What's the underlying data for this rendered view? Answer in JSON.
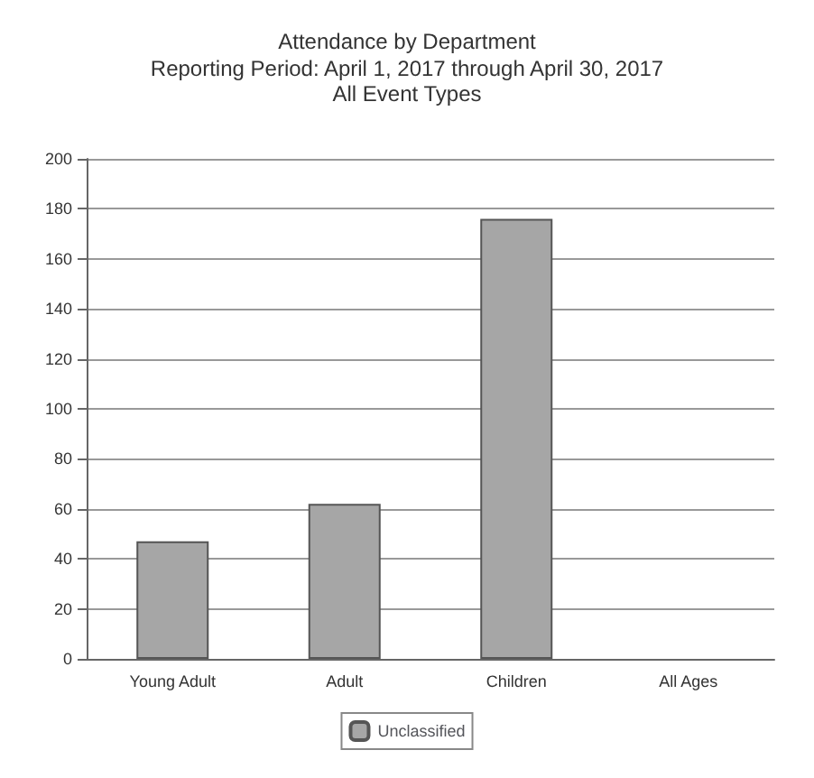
{
  "chart_data": {
    "type": "bar",
    "title": "Attendance by Department",
    "subtitle": "Reporting Period: April 1, 2017 through April 30, 2017\nAll Event Types",
    "categories": [
      "Young Adult",
      "Adult",
      "Children",
      "All Ages"
    ],
    "series": [
      {
        "name": "Unclassified",
        "color": "#a6a6a6",
        "values": [
          47,
          62,
          176,
          null
        ]
      }
    ],
    "ylim": [
      0,
      200
    ],
    "yticks": [
      0,
      20,
      40,
      60,
      80,
      100,
      120,
      140,
      160,
      180,
      200
    ],
    "grid": "y",
    "legend": "bottom"
  }
}
